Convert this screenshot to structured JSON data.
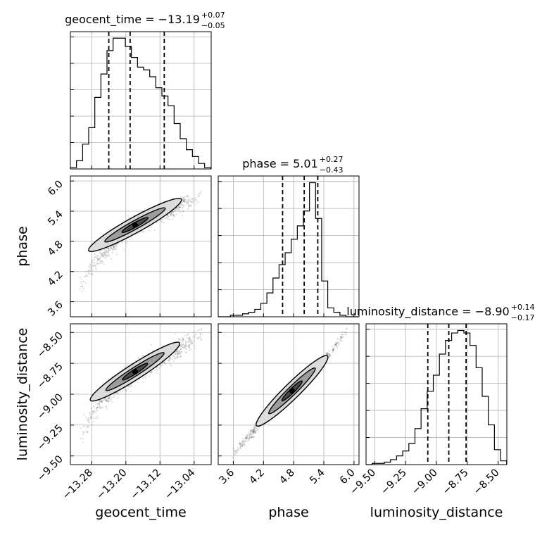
{
  "chart_data": {
    "type": "corner",
    "parameters": [
      {
        "key": "geocent_time",
        "axis_label": "geocent_time",
        "title_prefix": "geocent_time = ",
        "median": "−13.19",
        "plus": "+0.07",
        "minus": "−0.05",
        "range": [
          -13.33,
          -13.0
        ],
        "ticks": [
          -13.28,
          -13.2,
          -13.12,
          -13.04
        ],
        "tick_labels": [
          "−13.28",
          "−13.20",
          "−13.12",
          "−13.04"
        ],
        "quantiles": [
          -13.24,
          -13.19,
          -13.11
        ],
        "hist_edges_start": -13.33,
        "hist_bin_width": 0.0143,
        "hist_counts": [
          1,
          6,
          18,
          30,
          52,
          69,
          86,
          95,
          95,
          89,
          81,
          74,
          72,
          67,
          59,
          53,
          46,
          33,
          22,
          14,
          9,
          4,
          1
        ]
      },
      {
        "key": "phase",
        "axis_label": "phase",
        "title_prefix": "phase = ",
        "median": "5.01",
        "plus": "+0.27",
        "minus": "−0.43",
        "range": [
          3.3,
          6.1
        ],
        "ticks": [
          3.6,
          4.2,
          4.8,
          5.4,
          6.0
        ],
        "tick_labels": [
          "3.6",
          "4.2",
          "4.8",
          "5.4",
          "6.0"
        ],
        "quantiles": [
          4.58,
          5.01,
          5.28
        ],
        "hist_edges_start": 3.3,
        "hist_bin_width": 0.121,
        "hist_counts": [
          0,
          0,
          1,
          1,
          2,
          3,
          5,
          9,
          16,
          26,
          35,
          43,
          52,
          61,
          71,
          90,
          66,
          24,
          6,
          3,
          1,
          0,
          0
        ]
      },
      {
        "key": "luminosity_distance",
        "axis_label": "luminosity_distance",
        "title_prefix": "luminosity_distance = ",
        "median": "−8.90",
        "plus": "+0.14",
        "minus": "−0.17",
        "range": [
          -9.57,
          -8.43
        ],
        "ticks": [
          -9.5,
          -9.25,
          -9.0,
          -8.75,
          -8.5
        ],
        "tick_labels": [
          "−9.50",
          "−9.25",
          "−9.00",
          "−8.75",
          "−8.50"
        ],
        "quantiles": [
          -9.07,
          -8.9,
          -8.76
        ],
        "hist_edges_start": -9.57,
        "hist_bin_width": 0.0495,
        "hist_counts": [
          0,
          1,
          1,
          2,
          4,
          7,
          11,
          17,
          29,
          45,
          59,
          72,
          89,
          100,
          106,
          108,
          106,
          96,
          78,
          55,
          32,
          12,
          3
        ]
      }
    ],
    "scatter_trends": {
      "geocent_time__phase": {
        "x": [
          -13.3,
          -13.28,
          -13.25,
          -13.22,
          -13.2,
          -13.18,
          -13.15,
          -13.12,
          -13.09,
          -13.06,
          -13.03
        ],
        "y": [
          4.0,
          4.28,
          4.6,
          4.86,
          5.0,
          5.12,
          5.25,
          5.36,
          5.45,
          5.55,
          5.7
        ],
        "spread": 0.12
      },
      "geocent_time__luminosity_distance": {
        "x": [
          -13.3,
          -13.28,
          -13.25,
          -13.22,
          -13.2,
          -13.18,
          -13.15,
          -13.12,
          -13.09,
          -13.06,
          -13.03
        ],
        "y": [
          -9.32,
          -9.16,
          -9.02,
          -8.92,
          -8.88,
          -8.82,
          -8.76,
          -8.71,
          -8.66,
          -8.6,
          -8.53
        ],
        "spread": 0.04
      },
      "phase__luminosity_distance": {
        "x": [
          3.65,
          4.0,
          4.3,
          4.6,
          4.9,
          5.1,
          5.3,
          5.5,
          5.8
        ],
        "y": [
          -9.46,
          -9.3,
          -9.16,
          -9.04,
          -8.92,
          -8.84,
          -8.76,
          -8.68,
          -8.52
        ],
        "spread": 0.02
      }
    },
    "levels": [
      0.39,
      0.86,
      0.99
    ]
  }
}
